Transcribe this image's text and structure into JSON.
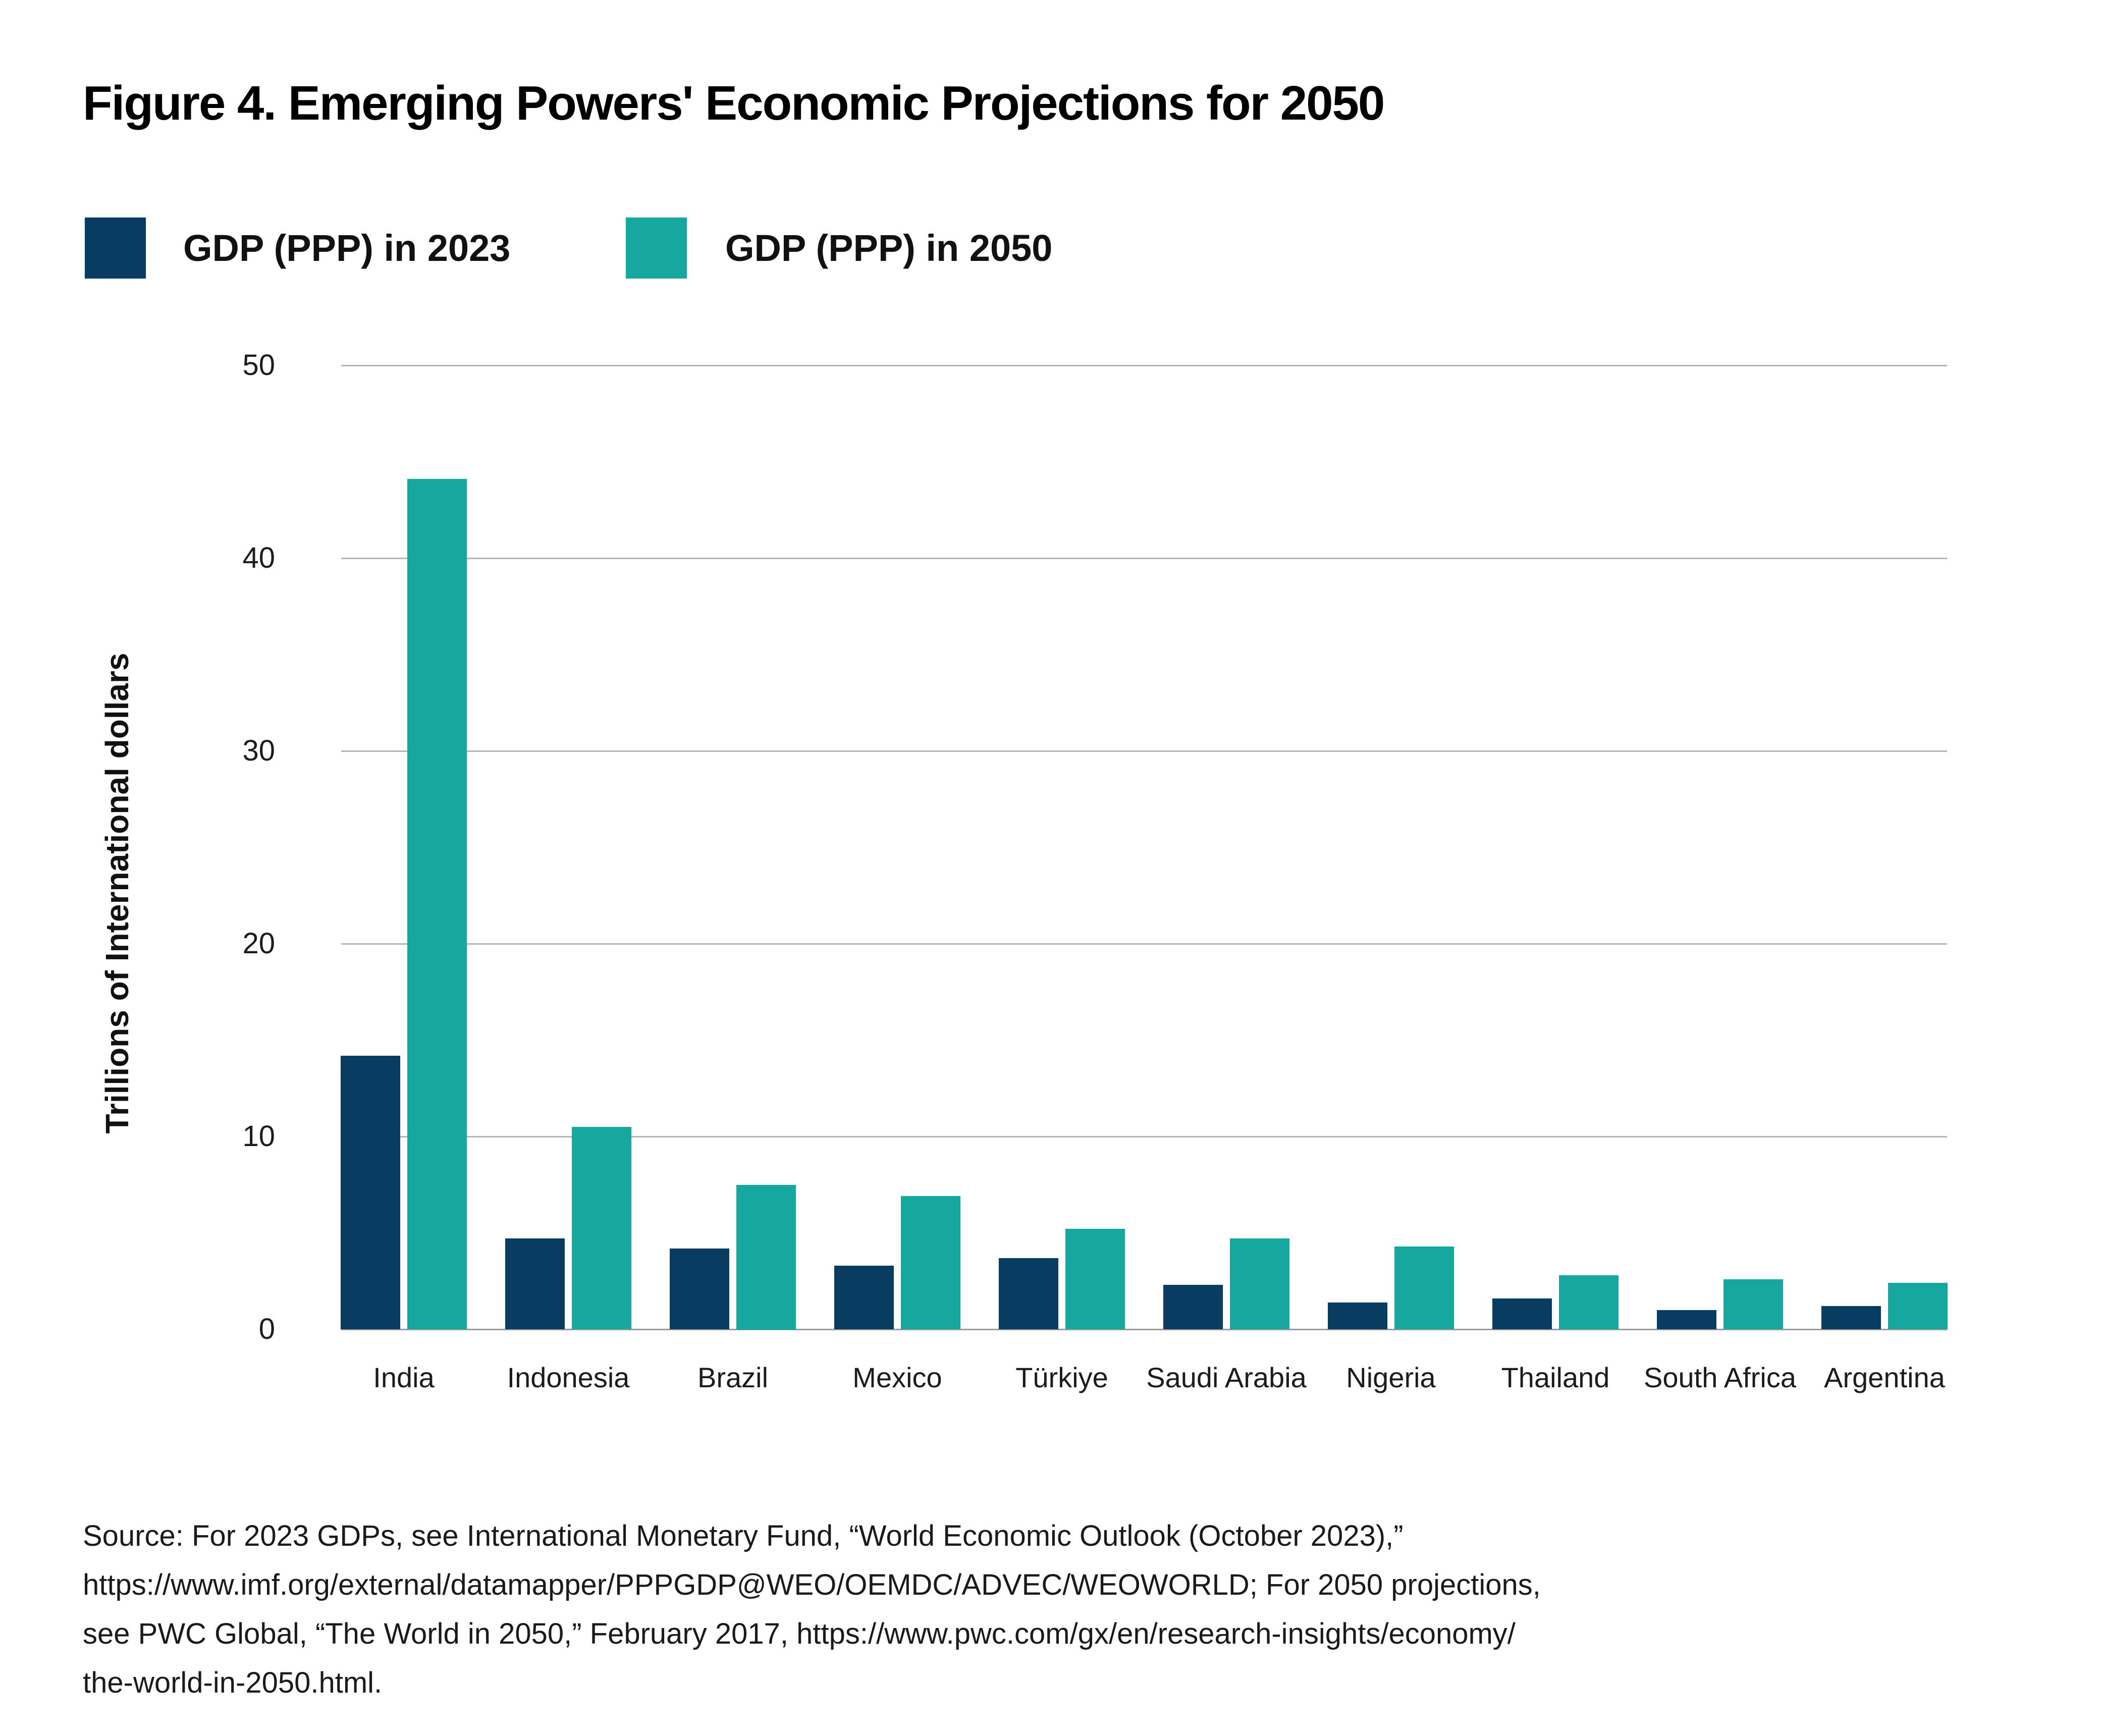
{
  "figure": {
    "title": "Figure 4. Emerging Powers' Economic Projections for 2050"
  },
  "legend": [
    {
      "label": "GDP (PPP) in 2023",
      "color": "#083c61"
    },
    {
      "label": "GDP (PPP) in 2050",
      "color": "#16a79e"
    }
  ],
  "chart_data": {
    "type": "bar",
    "title": "Figure 4. Emerging Powers' Economic Projections for 2050",
    "categories": [
      "India",
      "Indonesia",
      "Brazil",
      "Mexico",
      "Türkiye",
      "Saudi Arabia",
      "Nigeria",
      "Thailand",
      "South Africa",
      "Argentina"
    ],
    "series": [
      {
        "name": "GDP (PPP) in 2023",
        "color": "#083c61",
        "values": [
          14.2,
          4.7,
          4.2,
          3.3,
          3.7,
          2.3,
          1.4,
          1.6,
          1.0,
          1.2
        ]
      },
      {
        "name": "GDP (PPP) in 2050",
        "color": "#16a79e",
        "values": [
          44.1,
          10.5,
          7.5,
          6.9,
          5.2,
          4.7,
          4.3,
          2.8,
          2.6,
          2.4
        ]
      }
    ],
    "xlabel": "",
    "ylabel": "Trillions of International dollars",
    "yticks": [
      0,
      10,
      20,
      30,
      40,
      50
    ],
    "ylim": [
      0,
      50
    ],
    "grid": true,
    "legend_position": "top-left"
  },
  "source": {
    "lines": [
      "Source: For 2023 GDPs, see International Monetary Fund, “World Economic Outlook (October 2023),”",
      "https://www.imf.org/external/datamapper/PPPGDP@WEO/OEMDC/ADVEC/WEOWORLD; For 2050 projections,",
      "see PWC Global, “The World in 2050,” February 2017, https://www.pwc.com/gx/en/research-insights/economy/",
      "the-world-in-2050.html."
    ]
  }
}
